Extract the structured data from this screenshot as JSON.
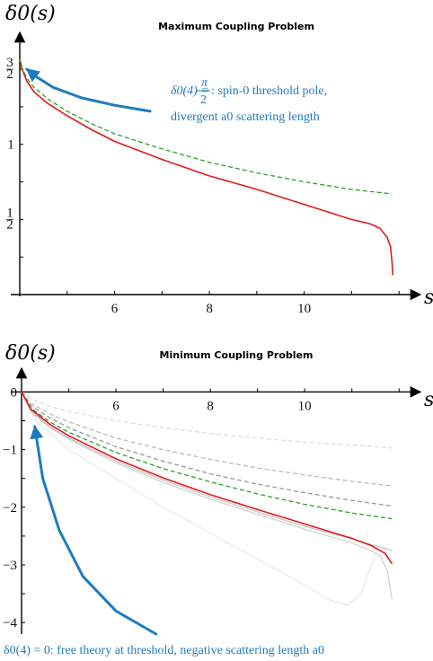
{
  "chart_data": [
    {
      "type": "line",
      "title": "Maximum Coupling Problem",
      "ylabel": "δ0(s)",
      "xlabel": "s",
      "xlim": [
        4,
        12.3
      ],
      "ylim": [
        0,
        1.65
      ],
      "x_ticks": [
        6,
        8,
        10
      ],
      "x_tick_labels": [
        "6",
        "8",
        "10"
      ],
      "y_ticks": [
        0.5,
        1,
        1.5
      ],
      "y_tick_labels": [
        "1/2",
        "1",
        "3/2"
      ],
      "annotation": {
        "line1_math": "δ0(4) =",
        "line1_frac_num": "π",
        "line1_frac_den": "2",
        "line1_text": ": spin-0 threshold pole,",
        "line2": "divergent a0 scattering length",
        "color": "#1f7bbf"
      },
      "series": [
        {
          "style": "solid",
          "color": "#e31a1c",
          "x": [
            4.0,
            4.05,
            4.15,
            4.3,
            4.6,
            5.0,
            5.5,
            6.0,
            7.0,
            8.0,
            9.0,
            10.0,
            10.5,
            11.0,
            11.4,
            11.6,
            11.75,
            11.82,
            11.85,
            11.87
          ],
          "y": [
            1.57,
            1.5,
            1.42,
            1.35,
            1.27,
            1.19,
            1.1,
            1.02,
            0.9,
            0.79,
            0.7,
            0.6,
            0.55,
            0.5,
            0.47,
            0.44,
            0.38,
            0.32,
            0.22,
            0.13
          ]
        },
        {
          "style": "dashed",
          "color": "#2ca02c",
          "x": [
            4.0,
            4.05,
            4.15,
            4.3,
            4.6,
            5.0,
            5.5,
            6.0,
            7.0,
            8.0,
            9.0,
            10.0,
            11.0,
            11.85
          ],
          "y": [
            1.57,
            1.51,
            1.44,
            1.38,
            1.3,
            1.22,
            1.14,
            1.07,
            0.97,
            0.88,
            0.81,
            0.75,
            0.7,
            0.67
          ]
        },
        {
          "style": "arrow",
          "color": "#1f7bbf",
          "x": [
            6.75,
            6.0,
            5.3,
            4.7,
            4.35,
            4.15
          ],
          "y": [
            1.22,
            1.26,
            1.31,
            1.38,
            1.45,
            1.5
          ]
        }
      ]
    },
    {
      "type": "line",
      "title": "Minimum Coupling Problem",
      "ylabel": "δ0(s)",
      "xlabel": "s",
      "xlim": [
        4,
        12.3
      ],
      "ylim": [
        -4.2,
        0.1
      ],
      "x_ticks": [
        6,
        8,
        10
      ],
      "x_tick_labels": [
        "6",
        "8",
        "10"
      ],
      "y_ticks": [
        0,
        -1,
        -2,
        -3,
        -4
      ],
      "y_tick_labels": [
        "0",
        "−1",
        "−2",
        "−3",
        "−4"
      ],
      "annotation": {
        "text": "δ0(4) = 0: free theory at threshold, negative scattering length a0",
        "color": "#1f7bbf"
      },
      "series": [
        {
          "style": "dashed",
          "color": "#dddddd",
          "x": [
            4.0,
            4.2,
            4.6,
            5.0,
            6.0,
            7.0,
            8.0,
            9.0,
            10.0,
            11.0,
            11.85
          ],
          "y": [
            0.0,
            -0.12,
            -0.25,
            -0.34,
            -0.5,
            -0.62,
            -0.72,
            -0.8,
            -0.87,
            -0.92,
            -0.97
          ]
        },
        {
          "style": "dashed",
          "color": "#bbbbbb",
          "x": [
            4.0,
            4.2,
            4.6,
            5.0,
            6.0,
            7.0,
            8.0,
            9.0,
            10.0,
            11.0,
            11.85
          ],
          "y": [
            0.0,
            -0.2,
            -0.38,
            -0.52,
            -0.8,
            -1.0,
            -1.17,
            -1.32,
            -1.44,
            -1.55,
            -1.63
          ]
        },
        {
          "style": "dashed",
          "color": "#999999",
          "x": [
            4.0,
            4.2,
            4.6,
            5.0,
            6.0,
            7.0,
            8.0,
            9.0,
            10.0,
            11.0,
            11.85
          ],
          "y": [
            0.0,
            -0.24,
            -0.45,
            -0.62,
            -0.95,
            -1.2,
            -1.42,
            -1.6,
            -1.75,
            -1.88,
            -1.98
          ]
        },
        {
          "style": "dashed",
          "color": "#2ca02c",
          "x": [
            4.0,
            4.2,
            4.6,
            5.0,
            6.0,
            7.0,
            8.0,
            9.0,
            10.0,
            11.0,
            11.85
          ],
          "y": [
            0.0,
            -0.28,
            -0.52,
            -0.7,
            -1.05,
            -1.33,
            -1.56,
            -1.77,
            -1.95,
            -2.1,
            -2.2
          ]
        },
        {
          "style": "solid",
          "color": "#e8e8e8",
          "x": [
            4.0,
            4.3,
            5.0,
            6.0,
            7.0,
            8.0,
            9.0,
            10.0,
            10.5,
            10.9,
            11.2,
            11.5,
            11.7,
            11.85
          ],
          "y": [
            0.0,
            -0.5,
            -1.0,
            -1.5,
            -2.0,
            -2.45,
            -2.9,
            -3.35,
            -3.6,
            -3.7,
            -3.5,
            -2.8,
            -2.7,
            -3.0
          ]
        },
        {
          "style": "solid",
          "color": "#d0d0d0",
          "x": [
            4.0,
            4.2,
            4.6,
            5.0,
            6.0,
            7.0,
            8.0,
            9.0,
            10.0,
            11.0,
            11.4,
            11.6,
            11.75,
            11.85
          ],
          "y": [
            0.0,
            -0.35,
            -0.62,
            -0.82,
            -1.23,
            -1.57,
            -1.86,
            -2.12,
            -2.38,
            -2.62,
            -2.75,
            -2.85,
            -3.1,
            -3.6
          ]
        },
        {
          "style": "solid",
          "color": "#c4c4c4",
          "x": [
            4.0,
            4.2,
            4.6,
            5.0,
            6.0,
            7.0,
            8.0,
            9.0,
            10.0,
            11.0,
            11.85
          ],
          "y": [
            0.0,
            -0.32,
            -0.6,
            -0.8,
            -1.2,
            -1.53,
            -1.82,
            -2.08,
            -2.33,
            -2.55,
            -2.75
          ]
        },
        {
          "style": "solid",
          "color": "#e31a1c",
          "x": [
            4.0,
            4.2,
            4.6,
            5.0,
            6.0,
            7.0,
            8.0,
            9.0,
            10.0,
            11.0,
            11.4,
            11.7,
            11.85
          ],
          "y": [
            0.0,
            -0.3,
            -0.56,
            -0.76,
            -1.16,
            -1.49,
            -1.78,
            -2.04,
            -2.29,
            -2.54,
            -2.66,
            -2.8,
            -2.98
          ]
        },
        {
          "style": "arrow",
          "color": "#1f7bbf",
          "x": [
            6.85,
            6.0,
            5.3,
            4.8,
            4.45,
            4.28
          ],
          "y": [
            -4.2,
            -3.8,
            -3.2,
            -2.4,
            -1.5,
            -0.6
          ]
        }
      ]
    }
  ]
}
